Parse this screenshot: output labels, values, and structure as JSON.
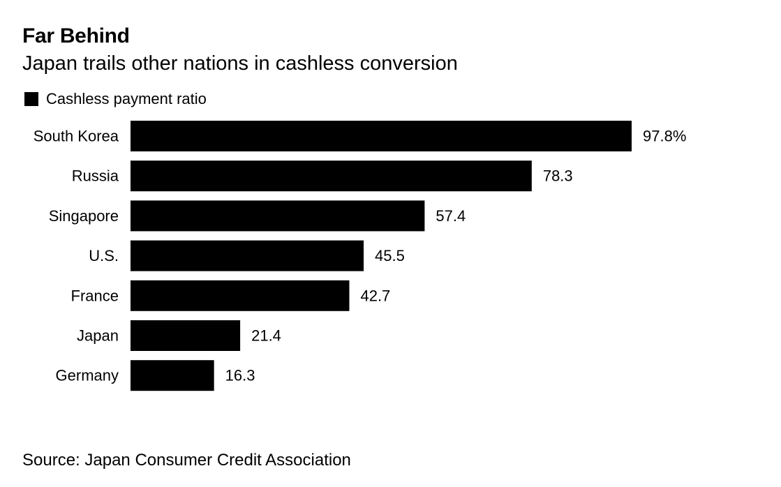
{
  "chart_data": {
    "type": "bar",
    "orientation": "horizontal",
    "title": "Far Behind",
    "subtitle": "Japan trails other nations in cashless conversion",
    "categories": [
      "South Korea",
      "Russia",
      "Singapore",
      "U.S.",
      "France",
      "Japan",
      "Germany"
    ],
    "series": [
      {
        "name": "Cashless payment ratio",
        "values": [
          97.8,
          78.3,
          57.4,
          45.5,
          42.7,
          21.4,
          16.3
        ],
        "value_labels": [
          "97.8%",
          "78.3",
          "57.4",
          "45.5",
          "42.7",
          "21.4",
          "16.3"
        ],
        "color": "#000000"
      }
    ],
    "xlim": [
      0,
      100
    ],
    "grid": false,
    "legend_position": "top-left",
    "source": "Source: Japan Consumer Credit Association"
  }
}
